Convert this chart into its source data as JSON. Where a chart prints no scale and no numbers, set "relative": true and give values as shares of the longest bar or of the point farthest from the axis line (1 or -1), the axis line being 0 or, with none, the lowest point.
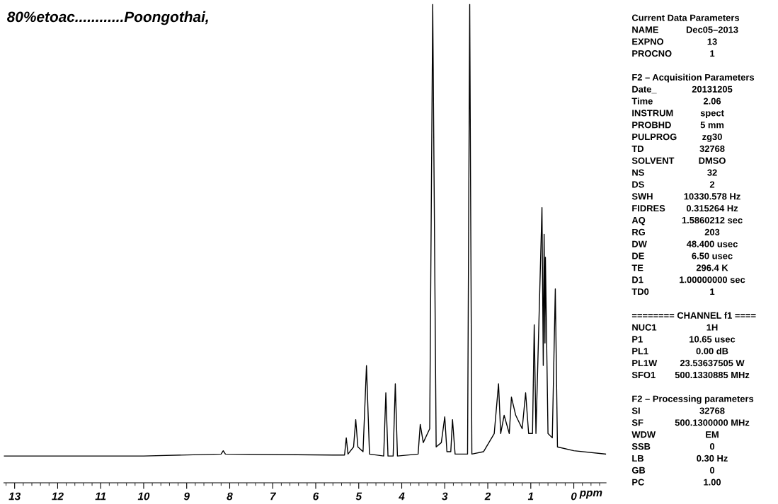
{
  "chart_data": [
    {
      "type": "line",
      "title": "80%etoac............Poongothai,",
      "xlabel": "ppm",
      "relative": true,
      "xlim": [
        13.25,
        -0.75
      ],
      "xticks": [
        13,
        12,
        11,
        10,
        9,
        8,
        7,
        6,
        5,
        4,
        3,
        2,
        1,
        0
      ],
      "x": [
        13.25,
        10,
        8.2,
        8.15,
        8.1,
        5.6,
        5.33,
        5.29,
        5.25,
        5.12,
        5.07,
        5.02,
        4.9,
        4.82,
        4.75,
        4.42,
        4.37,
        4.32,
        4.2,
        4.15,
        4.1,
        3.62,
        3.57,
        3.5,
        3.35,
        3.28,
        3.2,
        3.08,
        3.0,
        2.95,
        2.86,
        2.82,
        2.76,
        2.47,
        2.42,
        2.37,
        2.1,
        1.85,
        1.75,
        1.7,
        1.62,
        1.5,
        1.45,
        1.35,
        1.2,
        1.12,
        1.05,
        0.96,
        0.92,
        0.88,
        0.74,
        0.71,
        0.69,
        0.67,
        0.66,
        0.6,
        0.5,
        0.43,
        0.38,
        0.0,
        -0.75
      ],
      "series": [
        {
          "color": "#000000",
          "values": [
            0.056,
            0.056,
            0.06,
            0.067,
            0.06,
            0.058,
            0.058,
            0.094,
            0.06,
            0.075,
            0.132,
            0.075,
            0.065,
            0.245,
            0.06,
            0.056,
            0.188,
            0.056,
            0.056,
            0.207,
            0.056,
            0.06,
            0.122,
            0.084,
            0.113,
            1,
            0.075,
            0.084,
            0.138,
            0.065,
            0.065,
            0.132,
            0.06,
            0.06,
            1,
            0.06,
            0.065,
            0.103,
            0.207,
            0.103,
            0.141,
            0.103,
            0.179,
            0.141,
            0.113,
            0.188,
            0.103,
            0.103,
            0.33,
            0.103,
            0.575,
            0.245,
            0.519,
            0.292,
            0.471,
            0.103,
            0.094,
            0.405,
            0.075,
            0.067,
            0.06
          ]
        }
      ],
      "line_style": "solid",
      "marker": "none",
      "grid": false
    },
    {
      "type": "other",
      "categories": [
        "Current Data Parameters",
        "NAME",
        "EXPNO",
        "PROCNO",
        null,
        "F2 – Acquisition Parameters",
        "Date_",
        "Time",
        "INSTRUM",
        "PROBHD",
        "PULPROG",
        "TD",
        "SOLVENT",
        "NS",
        "DS",
        "SWH",
        "FIDRES",
        "AQ",
        "RG",
        "DW",
        "DE",
        "TE",
        "D1",
        "TD0",
        null,
        "======== CHANNEL f1 ====",
        "NUC1",
        "P1",
        "PL1",
        "PL1W",
        "SFO1",
        null,
        "F2 – Processing parameters",
        "SI",
        "SF",
        "WDW",
        "SSB",
        "LB",
        "GB",
        "PC"
      ],
      "value_labels": [
        null,
        "Dec05–2013",
        "13",
        "1",
        null,
        null,
        "20131205",
        "2.06",
        "spect",
        "5 mm",
        "zg30",
        "32768",
        "DMSO",
        "32",
        "2",
        "10330.578 Hz",
        "0.315264 Hz",
        "1.5860212 sec",
        "203",
        "48.400 usec",
        "6.50 usec",
        "296.4 K",
        "1.00000000 sec",
        "1",
        null,
        null,
        "1H",
        "10.65 usec",
        "0.00 dB",
        "23.53637505 W",
        "500.1330885 MHz",
        null,
        null,
        "32768",
        "500.1300000 MHz",
        "EM",
        "0",
        "0.30 Hz",
        "0",
        "1.00"
      ]
    }
  ]
}
